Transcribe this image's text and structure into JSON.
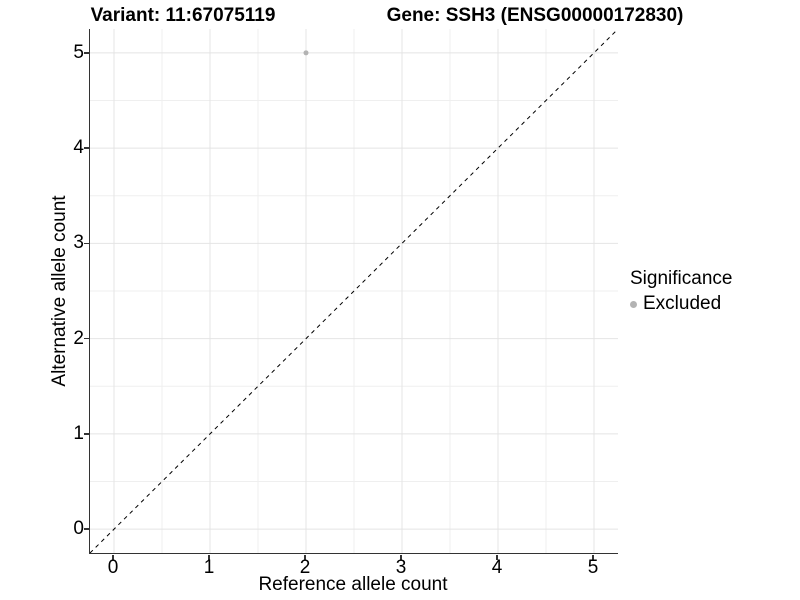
{
  "title": {
    "variant": "Variant: 11:67075119",
    "gene": "Gene: SSH3 (ENSG00000172830)"
  },
  "chart_data": {
    "type": "scatter",
    "xlabel": "Reference allele count",
    "ylabel": "Alternative allele count",
    "xlim": [
      -0.25,
      5.25
    ],
    "ylim": [
      -0.25,
      5.25
    ],
    "xticks": [
      0,
      1,
      2,
      3,
      4,
      5
    ],
    "yticks": [
      0,
      1,
      2,
      3,
      4,
      5
    ],
    "minor_grid_interval": 0.5,
    "grid": "on",
    "points": [
      {
        "x": 2,
        "y": 5,
        "significance": "Excluded"
      }
    ],
    "identity_line": {
      "equation": "y = x",
      "style": "dashed",
      "color": "#000000"
    },
    "legend": {
      "title": "Significance",
      "position": "right",
      "entries": [
        {
          "label": "Excluded",
          "color": "#b3b3b3"
        }
      ]
    }
  },
  "colors": {
    "background": "#ffffff",
    "grid_major": "#e4e4e4",
    "grid_minor": "#efefef",
    "axis_line": "#333333",
    "tick_text": "#000000",
    "point": "#b3b3b3",
    "identity_line": "#000000"
  }
}
